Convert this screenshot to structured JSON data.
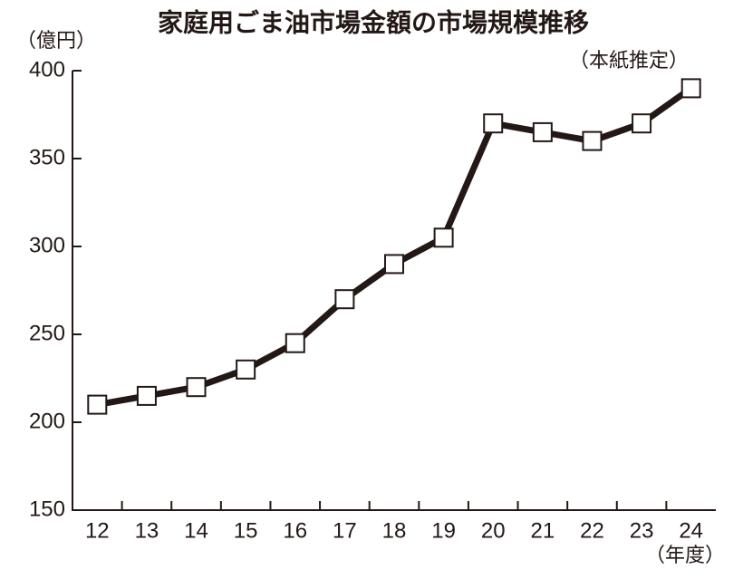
{
  "chart_data": {
    "type": "line",
    "title": "家庭用ごま油市場金額の市場規模推移",
    "y_label": "（億円）",
    "note": "（本紙推定）",
    "x_label": "（年度）",
    "categories": [
      "12",
      "13",
      "14",
      "15",
      "16",
      "17",
      "18",
      "19",
      "20",
      "21",
      "22",
      "23",
      "24"
    ],
    "series": [
      {
        "color": "#231815",
        "values": [
          210,
          215,
          220,
          230,
          245,
          270,
          290,
          305,
          370,
          365,
          360,
          370,
          390
        ]
      }
    ],
    "ylim": [
      150,
      400
    ],
    "yticks": [
      150,
      200,
      250,
      300,
      350,
      400
    ],
    "grid": false
  }
}
